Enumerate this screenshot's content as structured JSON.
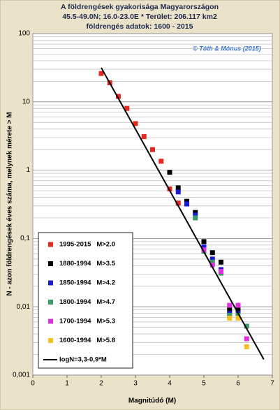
{
  "chart_data": {
    "type": "scatter",
    "title": [
      "A földrengések gyakorisága Magyarországon",
      "45.5-49.0N; 16.0-23.0E  *  Terület: 206.117 km2",
      "földrengés adatok:  1600 - 2015"
    ],
    "annotation": "© Tóth & Mónus (2015)",
    "xlabel": "Magnitúdó  (M)",
    "ylabel": "N  - azon földrengések éves száma, melynek mérete > M",
    "xlim": [
      0,
      7
    ],
    "xticks": [
      0,
      1,
      2,
      3,
      4,
      5,
      6,
      7
    ],
    "ylim": [
      0.001,
      100
    ],
    "ylog": true,
    "minor_grid": true,
    "yticks": [
      {
        "value": 0.001,
        "label": "0,001"
      },
      {
        "value": 0.01,
        "label": "0,01"
      },
      {
        "value": 0.1,
        "label": "0,1"
      },
      1,
      10,
      100
    ],
    "legend": "bottom-left",
    "series": [
      {
        "name": "1995-2015   M>2.0",
        "color": "#e8281e",
        "x": [
          2.0,
          2.25,
          2.5,
          2.75,
          3.0,
          3.25,
          3.5,
          3.75,
          4.0,
          4.25
        ],
        "values": [
          26,
          19,
          12,
          8,
          4.8,
          3.1,
          2.0,
          1.35,
          0.53,
          0.33
        ]
      },
      {
        "name": "1880-1994   M>3.5",
        "color": "#000000",
        "x": [
          4.0,
          4.25,
          4.5,
          4.75,
          5.0,
          5.25,
          5.5,
          5.75,
          6.0
        ],
        "values": [
          0.93,
          0.55,
          0.35,
          0.24,
          0.09,
          0.062,
          0.045,
          0.009,
          0.009
        ]
      },
      {
        "name": "1850-1994   M>4.2",
        "color": "#1a1ad0",
        "x": [
          4.25,
          4.5,
          4.75,
          5.0,
          5.25,
          5.5,
          5.75,
          6.0
        ],
        "values": [
          0.48,
          0.32,
          0.22,
          0.075,
          0.05,
          0.035,
          0.008,
          0.008
        ]
      },
      {
        "name": "1800-1994   M>4.7",
        "color": "#3a9a6a",
        "x": [
          4.75,
          5.0,
          5.25,
          5.5,
          5.75,
          6.0,
          6.25
        ],
        "values": [
          0.2,
          0.065,
          0.045,
          0.031,
          0.0075,
          0.0075,
          0.0052
        ]
      },
      {
        "name": "1700-1994   M>5.3",
        "color": "#e030e0",
        "x": [
          5.0,
          5.25,
          5.5,
          5.75,
          6.0,
          6.25
        ],
        "values": [
          0.068,
          0.041,
          0.033,
          0.0105,
          0.0105,
          0.0034
        ]
      },
      {
        "name": "1600-1994   M>5.8",
        "color": "#f5c020",
        "x": [
          5.75,
          6.0,
          6.25
        ],
        "values": [
          0.0068,
          0.0068,
          0.0026
        ]
      },
      {
        "name": "logN=3,3-0,9*M",
        "color": "#000000",
        "mode": "line",
        "x": [
          2.0,
          6.75
        ],
        "values": [
          31.6,
          0.0017
        ]
      }
    ]
  }
}
